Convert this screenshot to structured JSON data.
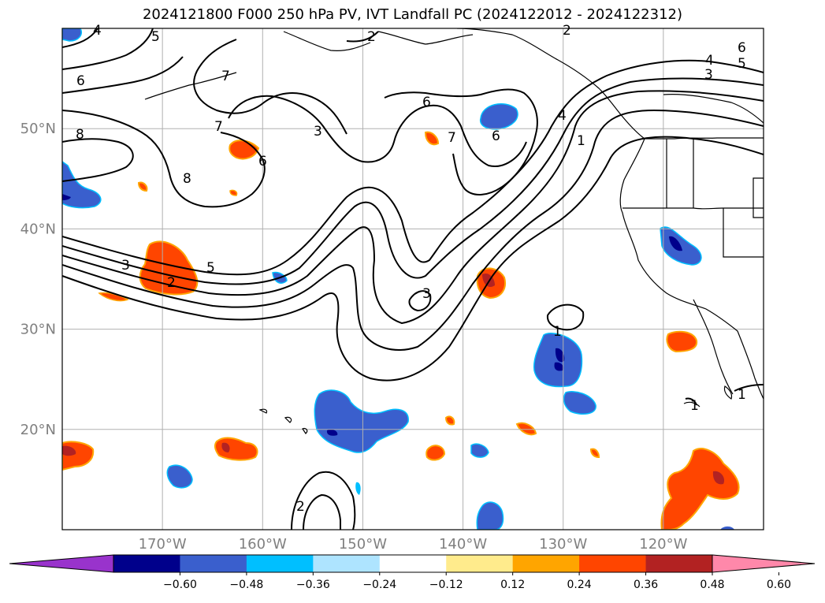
{
  "title": "2024121800 F000 250 hPa PV, IVT Landfall PC (2024122012 - 2024122312)",
  "map": {
    "lon_range": [
      -180,
      -110
    ],
    "lat_range": [
      10,
      60
    ],
    "lat_ticks": [
      {
        "value": 50,
        "label": "50°N"
      },
      {
        "value": 40,
        "label": "40°N"
      },
      {
        "value": 30,
        "label": "30°N"
      },
      {
        "value": 20,
        "label": "20°N"
      }
    ],
    "lon_ticks": [
      {
        "value": -170,
        "label": "170°W"
      },
      {
        "value": -160,
        "label": "160°W"
      },
      {
        "value": -150,
        "label": "150°W"
      },
      {
        "value": -140,
        "label": "140°W"
      },
      {
        "value": -130,
        "label": "130°W"
      },
      {
        "value": -120,
        "label": "120°W"
      }
    ],
    "grid": true,
    "contour_field": "250 hPa PV",
    "contour_labels": [
      "4",
      "5",
      "2",
      "2",
      "6",
      "7",
      "6",
      "8",
      "7",
      "6",
      "8",
      "3",
      "3",
      "5",
      "2",
      "7",
      "6",
      "4",
      "1",
      "3",
      "1",
      "2",
      "1",
      "1",
      "4",
      "5",
      "6",
      "3"
    ],
    "shaded_field": "IVT Landfall PC"
  },
  "colorbar": {
    "tick_labels": [
      "−0.60",
      "−0.48",
      "−0.36",
      "−0.24",
      "−0.12",
      "0.12",
      "0.24",
      "0.36",
      "0.48",
      "0.60"
    ],
    "colors": [
      "#9933cc",
      "#00008b",
      "#3a5fcd",
      "#00bfff",
      "#aee4ff",
      "#ffffff",
      "#ffeb8c",
      "#ffa500",
      "#ff4500",
      "#b22222",
      "#ff88aa"
    ]
  }
}
